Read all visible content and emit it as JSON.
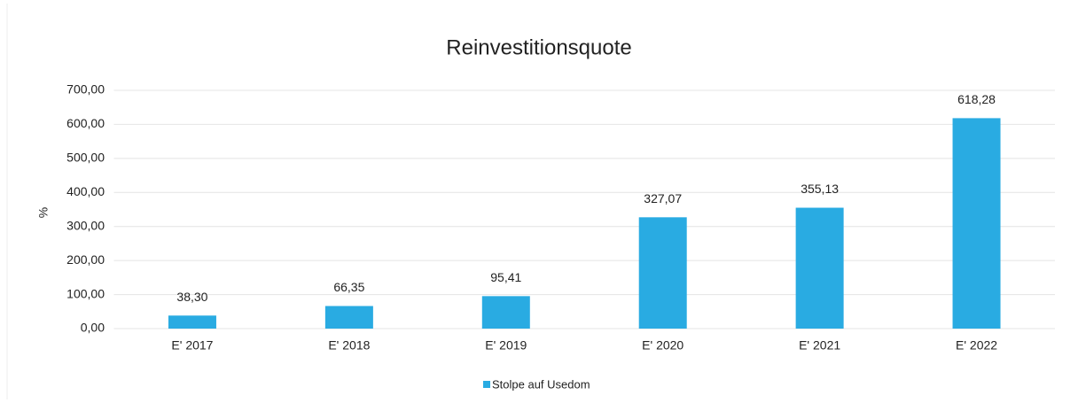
{
  "chart_data": {
    "type": "bar",
    "title": "Reinvestitionsquote",
    "y_label": "%",
    "categories": [
      "E' 2017",
      "E' 2018",
      "E' 2019",
      "E' 2020",
      "E' 2021",
      "E' 2022"
    ],
    "series": [
      {
        "name": "Stolpe auf Usedom",
        "color": "#29abe2",
        "values": [
          38.3,
          66.35,
          95.41,
          327.07,
          355.13,
          618.28
        ],
        "value_labels": [
          "38,30",
          "66,35",
          "95,41",
          "327,07",
          "355,13",
          "618,28"
        ]
      }
    ],
    "ylim": [
      0,
      700
    ],
    "yticks": [
      {
        "value": 0,
        "label": "0,00"
      },
      {
        "value": 100,
        "label": "100,00"
      },
      {
        "value": 200,
        "label": "200,00"
      },
      {
        "value": 300,
        "label": "300,00"
      },
      {
        "value": 400,
        "label": "400,00"
      },
      {
        "value": 500,
        "label": "500,00"
      },
      {
        "value": 600,
        "label": "600,00"
      },
      {
        "value": 700,
        "label": "700,00"
      }
    ],
    "grid": true,
    "legend": "bottom"
  }
}
